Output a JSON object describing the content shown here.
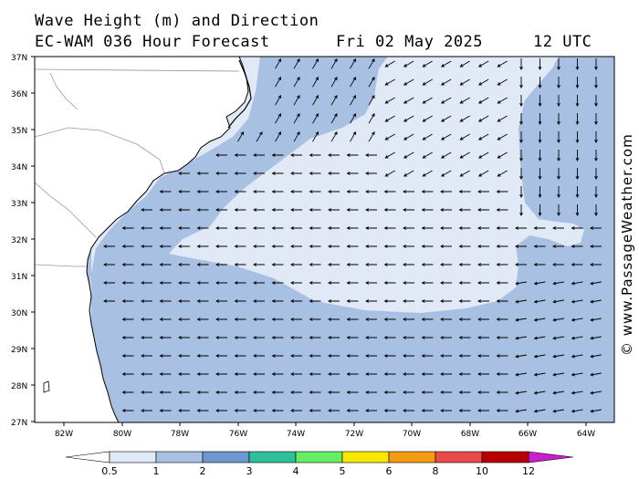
{
  "title": {
    "line1": "Wave Height (m) and Direction",
    "line2": "EC-WAM 036 Hour Forecast",
    "date": "Fri 02 May 2025",
    "time": "12 UTC"
  },
  "credit": "© www.PassageWeather.com",
  "map": {
    "lat_labels": [
      "37N",
      "36N",
      "35N",
      "34N",
      "33N",
      "32N",
      "31N",
      "30N",
      "29N",
      "28N",
      "27N"
    ],
    "lon_labels": [
      "82W",
      "80W",
      "78W",
      "76W",
      "74W",
      "72W",
      "70W",
      "68W",
      "66W",
      "64W"
    ]
  },
  "legend": {
    "levels": [
      "0.5",
      "1",
      "2",
      "3",
      "4",
      "5",
      "6",
      "8",
      "10",
      "12"
    ],
    "colors": [
      "#ffffff",
      "#e2e9f6",
      "#a8c1e2",
      "#6e97d1",
      "#2fbf99",
      "#66ee66",
      "#f8e800",
      "#f39c12",
      "#e84a4a",
      "#b80000",
      "#c81ecc"
    ]
  },
  "field_colors": {
    "land": "#ffffff",
    "band_0_5_1": "#e2e9f6",
    "band_1_2": "#a8c1e2"
  }
}
